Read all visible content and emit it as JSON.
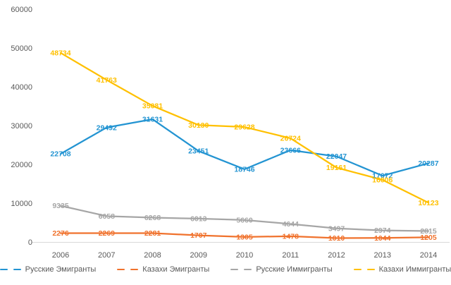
{
  "chart_data": {
    "type": "line",
    "title": "",
    "xlabel": "",
    "ylabel": "",
    "categories": [
      "2006",
      "2007",
      "2008",
      "2009",
      "2010",
      "2011",
      "2012",
      "2013",
      "2014"
    ],
    "series": [
      {
        "name": "Русские Эмигранты",
        "color": "#2394D2",
        "values": [
          22708,
          29492,
          31631,
          23451,
          18746,
          23666,
          22047,
          17072,
          20287
        ]
      },
      {
        "name": "Казахи Эмигранты",
        "color": "#F0722D",
        "values": [
          2276,
          2269,
          2281,
          1707,
          1305,
          1478,
          1010,
          1044,
          1205
        ]
      },
      {
        "name": "Русские Иммигранты",
        "color": "#A6A6A6",
        "values": [
          9335,
          6658,
          6268,
          6013,
          5660,
          4644,
          3497,
          2974,
          2815
        ]
      },
      {
        "name": "Казахи Иммигранты",
        "color": "#FFC000",
        "values": [
          48734,
          41763,
          35081,
          30130,
          29628,
          26724,
          19161,
          16006,
          10123
        ]
      }
    ],
    "ylim": [
      0,
      60000
    ],
    "yticks": [
      {
        "value": 0,
        "label": "0"
      },
      {
        "value": 10000,
        "label": "10000"
      },
      {
        "value": 20000,
        "label": "20000"
      },
      {
        "value": 30000,
        "label": "30000"
      },
      {
        "value": 40000,
        "label": "40000"
      },
      {
        "value": 50000,
        "label": "50000"
      },
      {
        "value": 60000,
        "label": "60000"
      }
    ],
    "grid": false,
    "data_labels": true,
    "data_label_position": "center",
    "legend_position": "bottom",
    "line_style": "solid",
    "markers": false
  },
  "colors": {
    "background": "#FFFFFF",
    "axis_text": "#595959",
    "axis_line": "#D9D9D9",
    "legend_text": "#595959"
  }
}
